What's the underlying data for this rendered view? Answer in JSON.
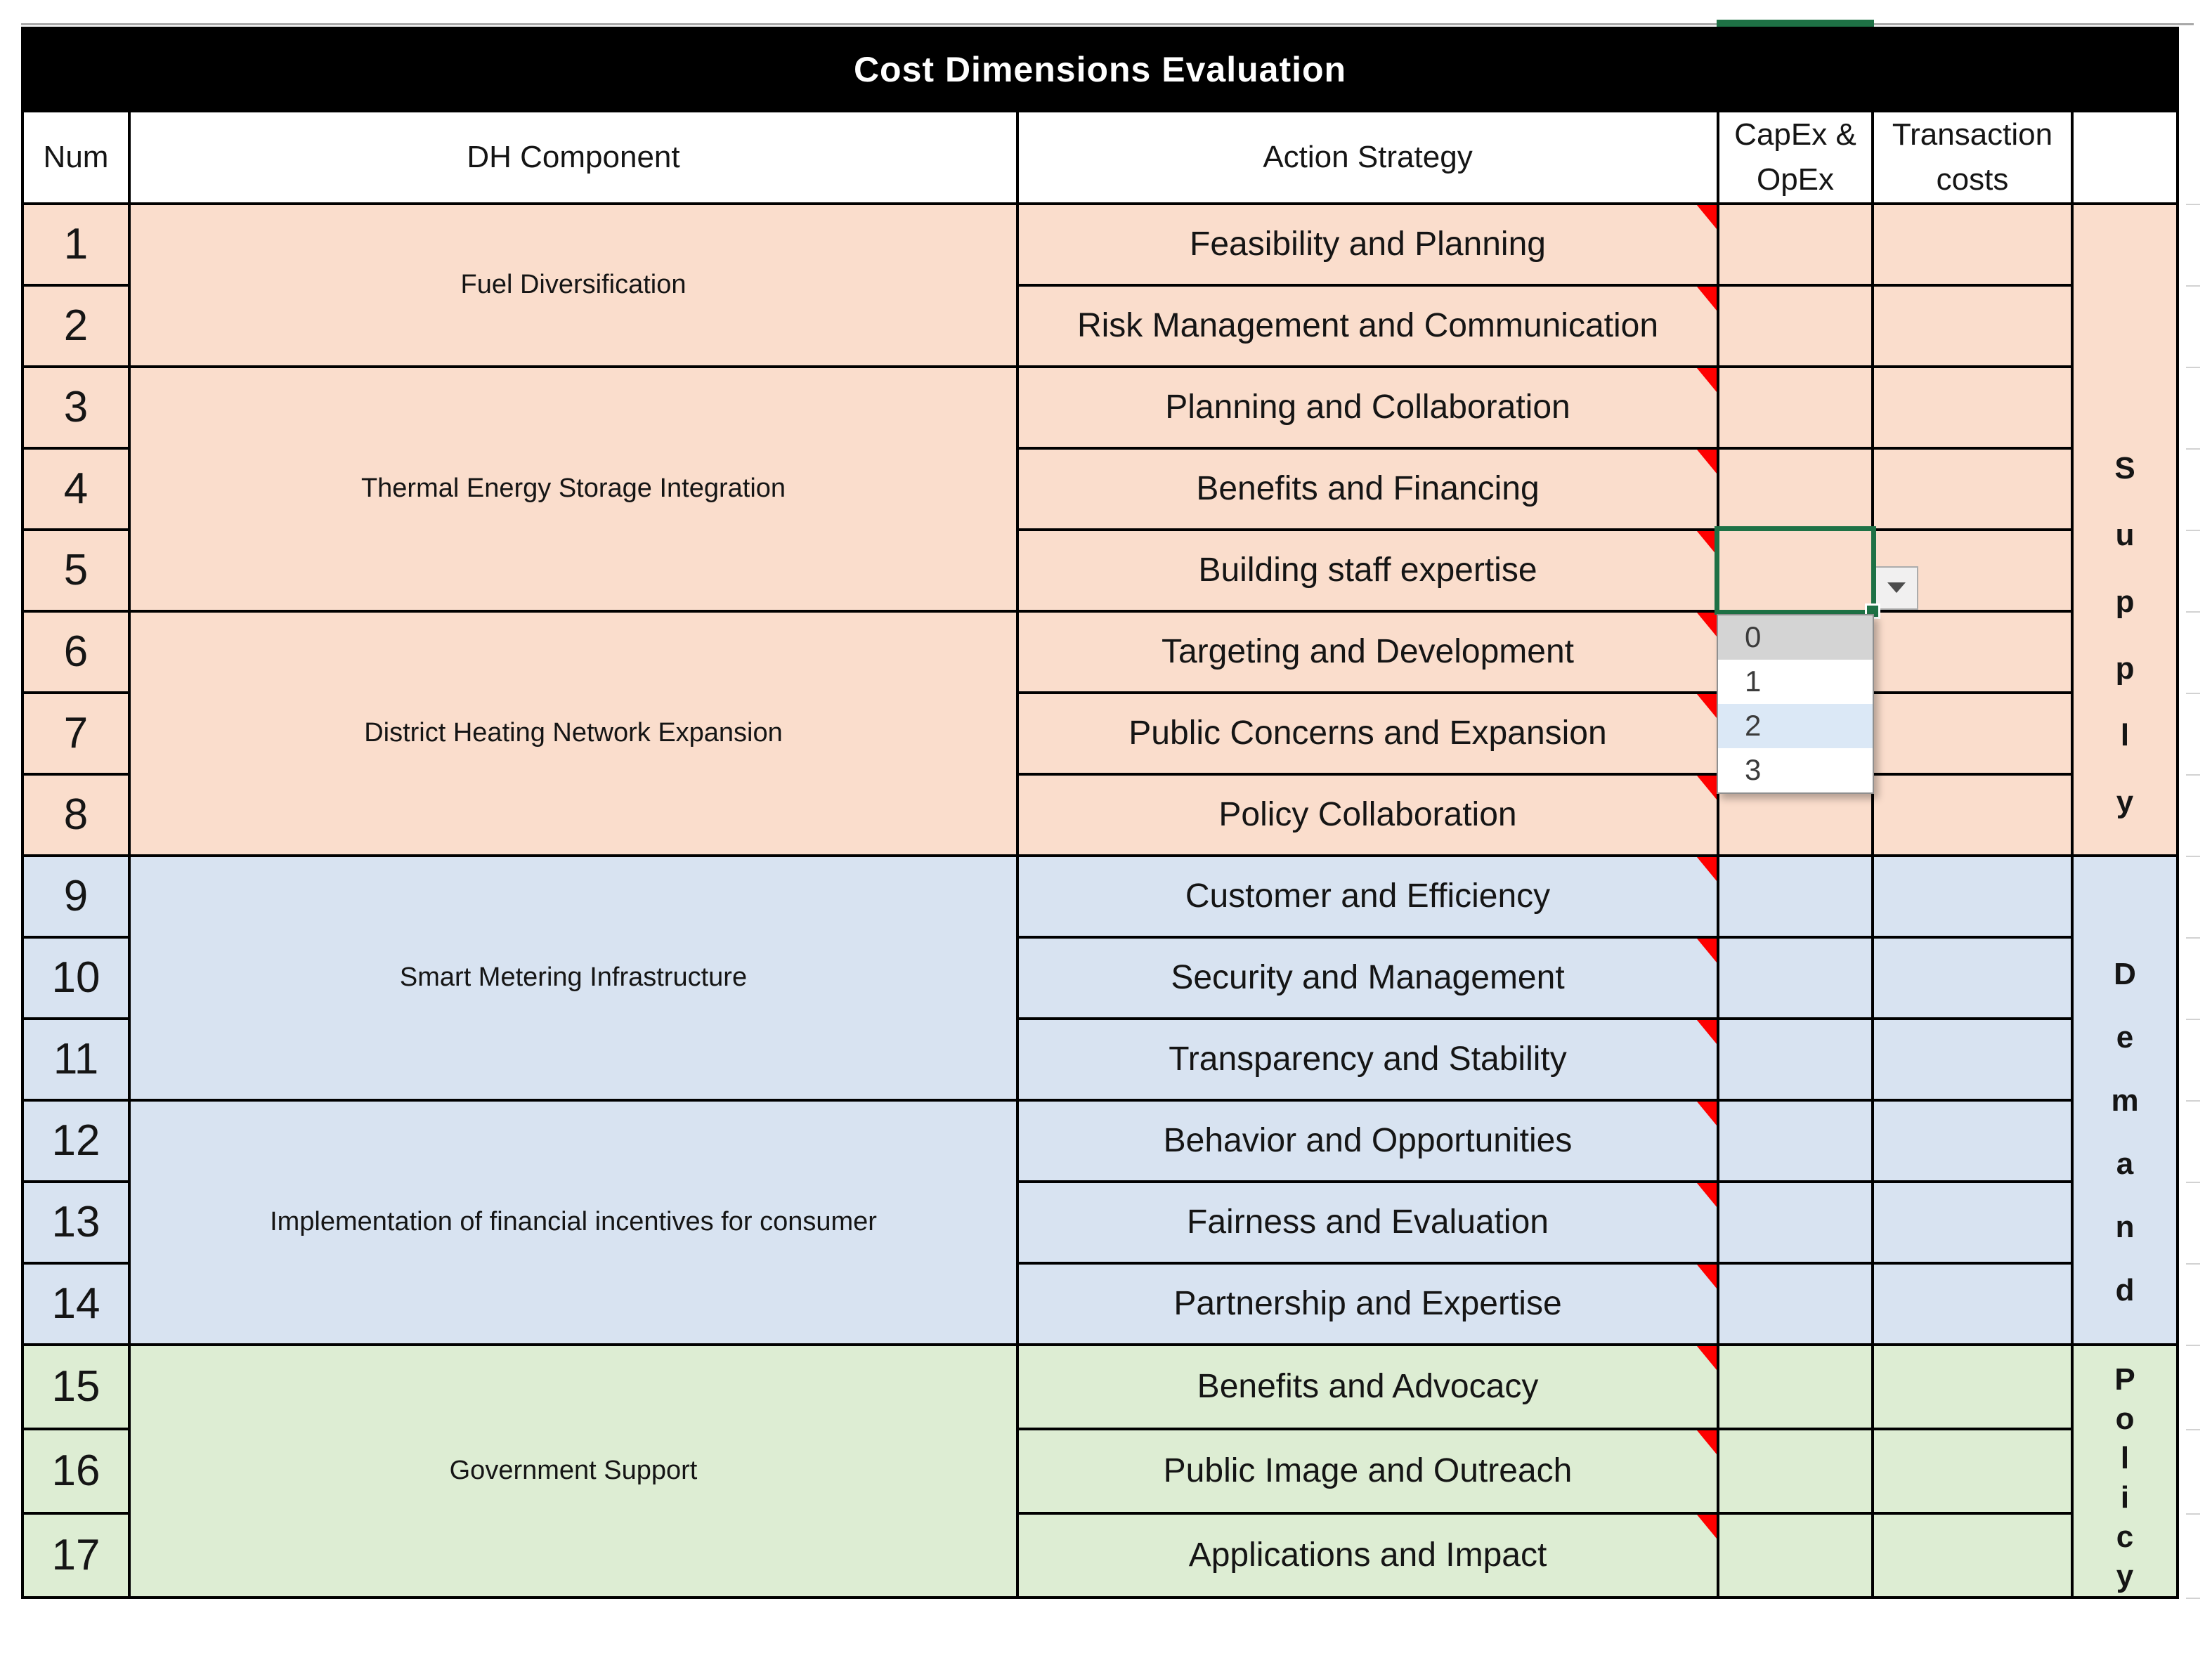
{
  "title": "Cost Dimensions Evaluation",
  "header": {
    "num": "Num",
    "component": "DH Component",
    "action": "Action Strategy",
    "capex": "CapEx & OpEx",
    "transaction": "Transaction costs",
    "category": ""
  },
  "sections": [
    {
      "label": "Supply",
      "fill": "#FADDCC",
      "groups": [
        {
          "component": "Fuel Diversification",
          "rows": [
            {
              "num": "1",
              "action": "Feasibility and Planning"
            },
            {
              "num": "2",
              "action": "Risk Management and Communication"
            }
          ]
        },
        {
          "component": "Thermal Energy Storage Integration",
          "rows": [
            {
              "num": "3",
              "action": "Planning and Collaboration"
            },
            {
              "num": "4",
              "action": "Benefits and Financing"
            },
            {
              "num": "5",
              "action": "Building staff expertise"
            }
          ]
        },
        {
          "component": "District Heating Network Expansion",
          "rows": [
            {
              "num": "6",
              "action": "Targeting and Development"
            },
            {
              "num": "7",
              "action": "Public Concerns and Expansion"
            },
            {
              "num": "8",
              "action": "Policy Collaboration"
            }
          ]
        }
      ]
    },
    {
      "label": "Demand",
      "fill": "#D8E3F1",
      "groups": [
        {
          "component": "Smart Metering Infrastructure",
          "rows": [
            {
              "num": "9",
              "action": "Customer and Efficiency"
            },
            {
              "num": "10",
              "action": "Security and Management"
            },
            {
              "num": "11",
              "action": "Transparency and Stability"
            }
          ]
        },
        {
          "component": "Implementation of financial incentives for consumer",
          "rows": [
            {
              "num": "12",
              "action": "Behavior and Opportunities"
            },
            {
              "num": "13",
              "action": "Fairness and Evaluation"
            },
            {
              "num": "14",
              "action": "Partnership and Expertise"
            }
          ]
        }
      ]
    },
    {
      "label": "Policy",
      "fill": "#DDEDD3",
      "groups": [
        {
          "component": "Government Support",
          "rows": [
            {
              "num": "15",
              "action": "Benefits and Advocacy"
            },
            {
              "num": "16",
              "action": "Public Image and Outreach"
            },
            {
              "num": "17",
              "action": "Applications and Impact"
            }
          ]
        }
      ]
    }
  ],
  "selection": {
    "row": "5",
    "column": "CapEx & OpEx",
    "border_color": "#1E7145"
  },
  "dropdown": {
    "options": [
      "0",
      "1",
      "2",
      "3"
    ],
    "selected": "0",
    "hovered": "2"
  },
  "colors": {
    "title_bar": "#000000",
    "supply_fill": "#FADDCC",
    "demand_fill": "#D8E3F1",
    "policy_fill": "#DDEDD3",
    "selection_green": "#1E7145",
    "comment_red": "#FE0000",
    "dropdown_selected_bg": "#D4D4D4",
    "dropdown_hover_bg": "#DBE8F6"
  }
}
